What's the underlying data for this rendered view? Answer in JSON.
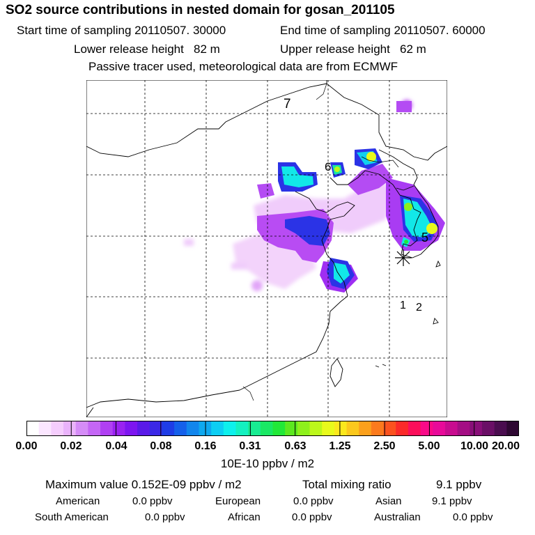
{
  "header": {
    "title": "SO2 source contributions in nested domain for gosan_201105",
    "start": "Start time of sampling 20110507. 30000",
    "end": "End time of sampling 20110507. 60000",
    "lower": "Lower release height   82 m",
    "upper": "Upper release height   62 m",
    "tracer": "Passive tracer used, meteorological data are from ECMWF"
  },
  "map": {
    "labels": [
      "7",
      "6",
      "5",
      "1",
      "2"
    ],
    "receptor_symbol": "asterisk-icon"
  },
  "colorbar": {
    "ticks": [
      "0.00",
      "0.02",
      "0.04",
      "0.08",
      "0.16",
      "0.31",
      "0.63",
      "1.25",
      "2.50",
      "5.00",
      "10.00",
      "20.00"
    ],
    "units": "10E-10 ppbv / m2",
    "colors": [
      "#ffffff",
      "#fbe6ff",
      "#f5cdfd",
      "#eab3fb",
      "#d58cf7",
      "#c466f5",
      "#b040f3",
      "#9922f1",
      "#7d15f0",
      "#5a1ae8",
      "#3b28e6",
      "#1f3de6",
      "#1560ea",
      "#1286ec",
      "#0fa8ef",
      "#0dcef3",
      "#0df0ec",
      "#14f0c0",
      "#18ec92",
      "#1ae864",
      "#22e838",
      "#5ce81f",
      "#8ef01c",
      "#bcf71b",
      "#e8fa1c",
      "#fbe81d",
      "#fbc81d",
      "#fba01c",
      "#fb7a1d",
      "#fb521f",
      "#fb2a2a",
      "#fb0f5a",
      "#f90a88",
      "#e80a99",
      "#c80c8f",
      "#a40e84",
      "#880f78",
      "#6a0f66",
      "#4a0d4f",
      "#2e0832"
    ]
  },
  "stats": {
    "max_label": "Maximum value  0.152E-09 ppbv / m2",
    "total_label": "Total mixing ratio",
    "total_value": "9.1 ppbv",
    "american_label": "American",
    "american_value": "0.0 ppbv",
    "european_label": "European",
    "european_value": "0.0 ppbv",
    "asian_label": "Asian",
    "asian_value": "9.1 ppbv",
    "south_american_label": "South American",
    "south_american_value": "0.0 ppbv",
    "african_label": "African",
    "african_value": "0.0 ppbv",
    "australian_label": "Australian",
    "australian_value": "0.0 ppbv"
  }
}
